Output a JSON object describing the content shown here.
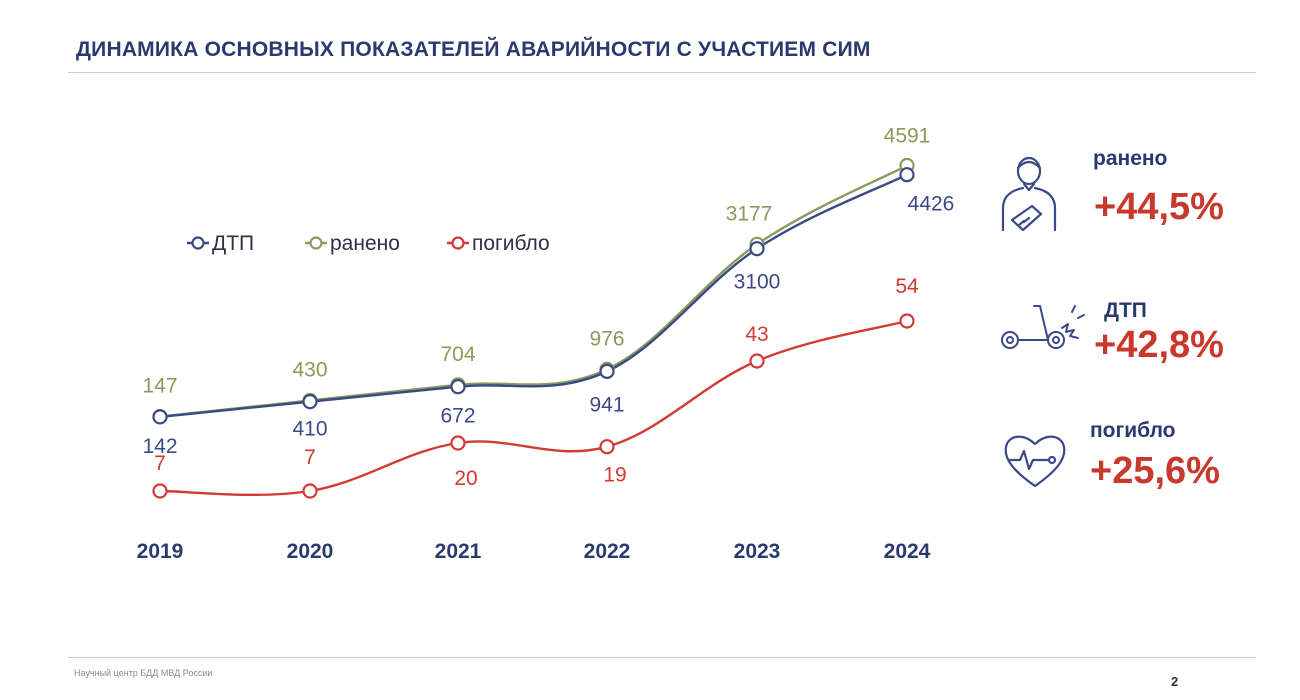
{
  "title": "ДИНАМИКА ОСНОВНЫХ ПОКАЗАТЕЛЕЙ АВАРИЙНОСТИ С УЧАСТИЕМ СИМ",
  "footer": "Научный центр БДД МВД России",
  "page_number": "2",
  "stats": [
    {
      "label": "ранено",
      "value": "+44,5%",
      "icon": "injured-person-icon"
    },
    {
      "label": "ДТП",
      "value": "+42,8%",
      "icon": "scooter-crash-icon"
    },
    {
      "label": "погибло",
      "value": "+25,6%",
      "icon": "heart-pulse-icon"
    }
  ],
  "colors": {
    "dtp": "#3a4a86",
    "raneno": "#8b9a5b",
    "pogiblo": "#d23a33",
    "accent": "#c9382c",
    "title": "#2a3a6e"
  },
  "chart_data": {
    "type": "line",
    "categories": [
      "2019",
      "2020",
      "2021",
      "2022",
      "2023",
      "2024"
    ],
    "series": [
      {
        "name": "ДТП",
        "values": [
          142,
          410,
          672,
          941,
          3100,
          4426
        ]
      },
      {
        "name": "ранено",
        "values": [
          147,
          430,
          704,
          976,
          3177,
          4591
        ]
      },
      {
        "name": "погибло",
        "values": [
          7,
          7,
          20,
          19,
          43,
          54
        ]
      }
    ],
    "legend": [
      "ДТП",
      "ранено",
      "погибло"
    ],
    "legend_position": "top-left",
    "title": "",
    "xlabel": "",
    "ylabel": ""
  }
}
